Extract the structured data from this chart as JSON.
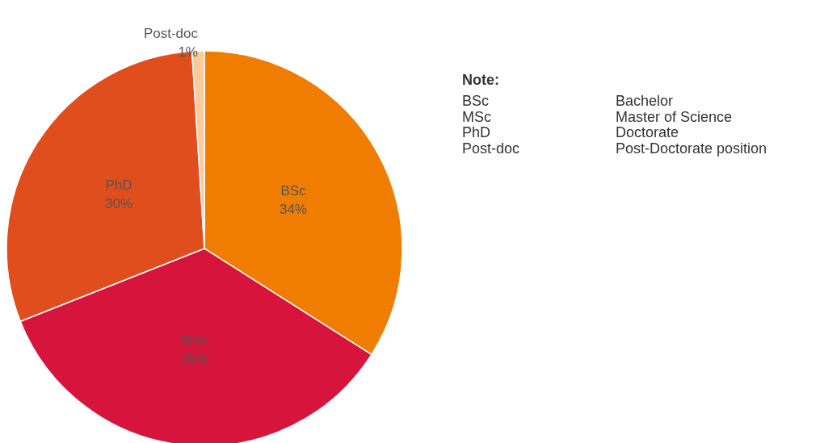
{
  "chart_data": {
    "type": "pie",
    "categories": [
      "BSc",
      "MSc",
      "PhD",
      "Post-doc"
    ],
    "values": [
      34,
      35,
      30,
      1
    ],
    "value_labels": [
      "34%",
      "35%",
      "30%",
      "1%"
    ],
    "colors": [
      "#f07d00",
      "#d7143c",
      "#e04e1e",
      "#fcc99a"
    ],
    "legend": false,
    "annotations": [
      "Note:",
      "BSc",
      "Bachelor",
      "MSc",
      "Master of Science",
      "PhD",
      "Doctorate",
      "Post-doc",
      "Post-Doctorate position"
    ]
  }
}
